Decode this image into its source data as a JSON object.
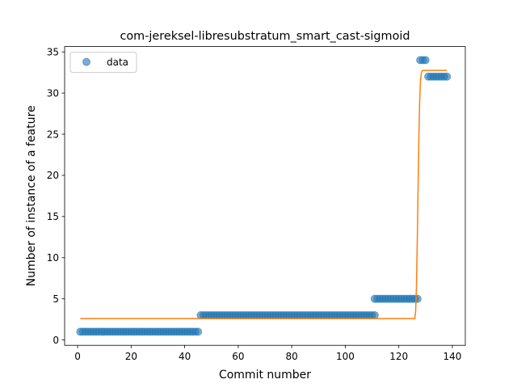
{
  "chart_data": {
    "type": "scatter",
    "title": "com-jereksel-libresubstratum_smart_cast-sigmoid",
    "xlabel": "Commit number",
    "ylabel": "Number of instance of a feature",
    "xlim": [
      -4.85,
      144.85
    ],
    "ylim": [
      -0.65,
      35.65
    ],
    "xticks": [
      0,
      20,
      40,
      60,
      80,
      100,
      120,
      140
    ],
    "yticks": [
      0,
      5,
      10,
      15,
      20,
      25,
      30,
      35
    ],
    "grid": false,
    "legend": {
      "placement": "top-left",
      "entries": [
        "data"
      ]
    },
    "colors": {
      "data": "#1f77b4",
      "fit": "#ff7f0e"
    },
    "series": [
      {
        "name": "data",
        "kind": "scatter",
        "segments": [
          {
            "x_start": 1,
            "x_end": 45,
            "y": 1
          },
          {
            "x_start": 46,
            "x_end": 111,
            "y": 3
          },
          {
            "x_start": 111,
            "x_end": 127,
            "y": 5
          },
          {
            "x_start": 128,
            "x_end": 130,
            "y": 34
          },
          {
            "x_start": 131,
            "x_end": 138,
            "y": 32
          }
        ]
      },
      {
        "kind": "line",
        "x": [
          1,
          126,
          126.3,
          126.6,
          126.9,
          127.2,
          127.5,
          127.8,
          128.1,
          128.4,
          128.7,
          129,
          138
        ],
        "y": [
          2.6,
          2.6,
          3.5,
          6.5,
          12.0,
          18.5,
          24.5,
          29.0,
          31.5,
          32.4,
          32.7,
          32.75,
          32.75
        ]
      }
    ]
  }
}
